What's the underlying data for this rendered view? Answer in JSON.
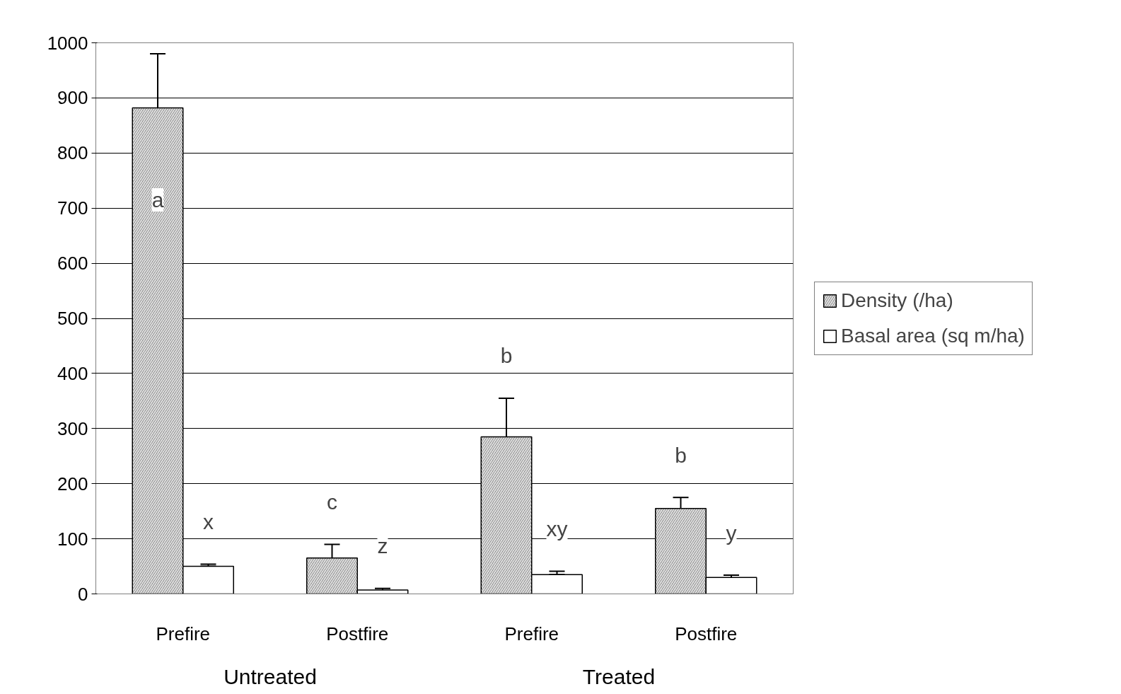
{
  "chart_data": {
    "type": "bar",
    "categories": [
      "Prefire",
      "Postfire",
      "Prefire",
      "Postfire"
    ],
    "series": [
      {
        "name": "Density (/ha)",
        "color": "#555555",
        "values": [
          882,
          65,
          285,
          155
        ],
        "errors": [
          [
            780,
            980
          ],
          [
            42,
            90
          ],
          [
            218,
            355
          ],
          [
            137,
            175
          ]
        ]
      },
      {
        "name": "Basal area (sq m/ha)",
        "color": "#ffffff",
        "values": [
          50,
          7,
          35,
          30
        ],
        "errors": [
          [
            50,
            54
          ],
          [
            4,
            10
          ],
          [
            35,
            41
          ],
          [
            27,
            34
          ]
        ]
      }
    ],
    "ylim": [
      0,
      1000
    ],
    "yticks": [
      0,
      100,
      200,
      300,
      400,
      500,
      600,
      700,
      800,
      900,
      1000
    ],
    "grid": "y",
    "legend": "right",
    "annotations": [
      "a",
      "x",
      "c",
      "z",
      "b",
      "xy",
      "b",
      "y",
      "Untreated",
      "Treated"
    ]
  }
}
